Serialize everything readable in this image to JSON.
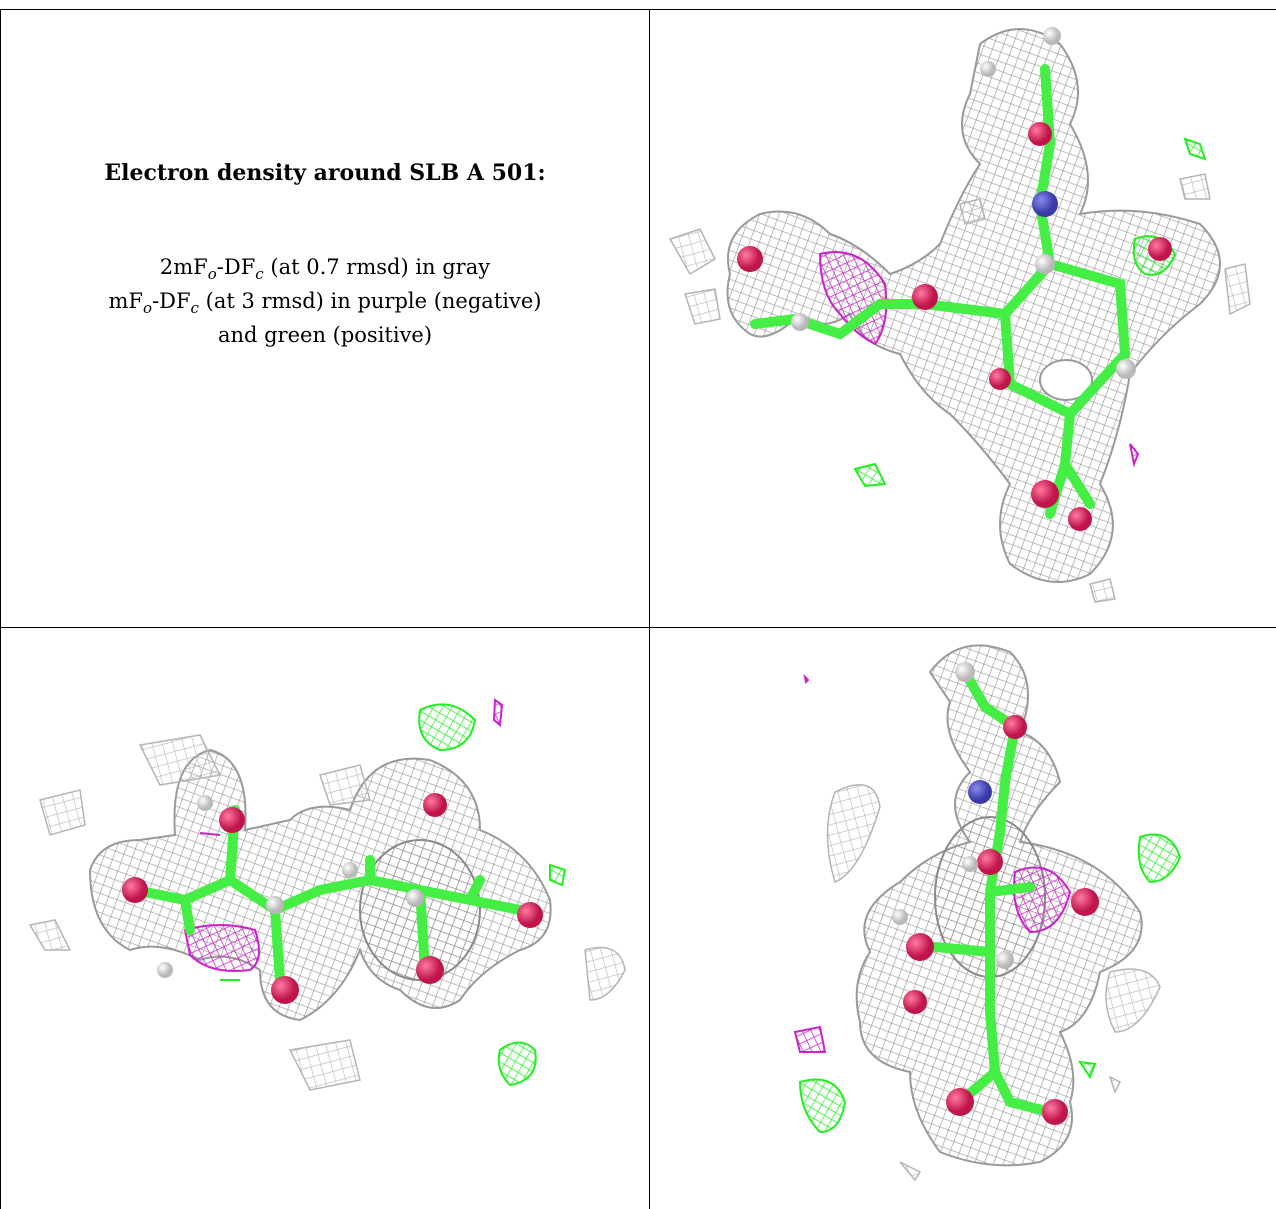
{
  "caption": {
    "title": "Electron density around SLB A 501:",
    "line1_pre": "2mF",
    "line1_sub1": "o",
    "line1_mid": "-DF",
    "line1_sub2": "c",
    "line1_post": " (at 0.7 rmsd) in gray",
    "line2_pre": "mF",
    "line2_sub1": "o",
    "line2_mid": "-DF",
    "line2_sub2": "c",
    "line2_post": " (at 3 rmsd) in purple (negative)",
    "line3": "and green (positive)"
  },
  "colors": {
    "density_2fofc": "#9a9a9a",
    "diff_negative": "#cc22cc",
    "diff_positive": "#22ee22",
    "carbon": "#44ee44",
    "oxygen": "#e0205a",
    "nitrogen": "#5555cc",
    "hydrogen": "#e8e8e8"
  }
}
